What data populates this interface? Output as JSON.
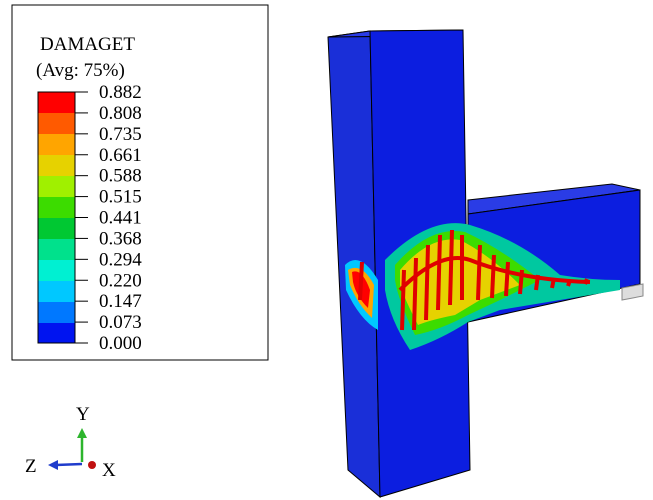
{
  "legend": {
    "title": "DAMAGET",
    "subtitle": "(Avg: 75%)",
    "levels": [
      "0.882",
      "0.808",
      "0.735",
      "0.661",
      "0.588",
      "0.515",
      "0.441",
      "0.368",
      "0.294",
      "0.220",
      "0.147",
      "0.073",
      "0.000"
    ]
  },
  "triad": {
    "y": "Y",
    "z": "Z",
    "x": "X"
  }
}
